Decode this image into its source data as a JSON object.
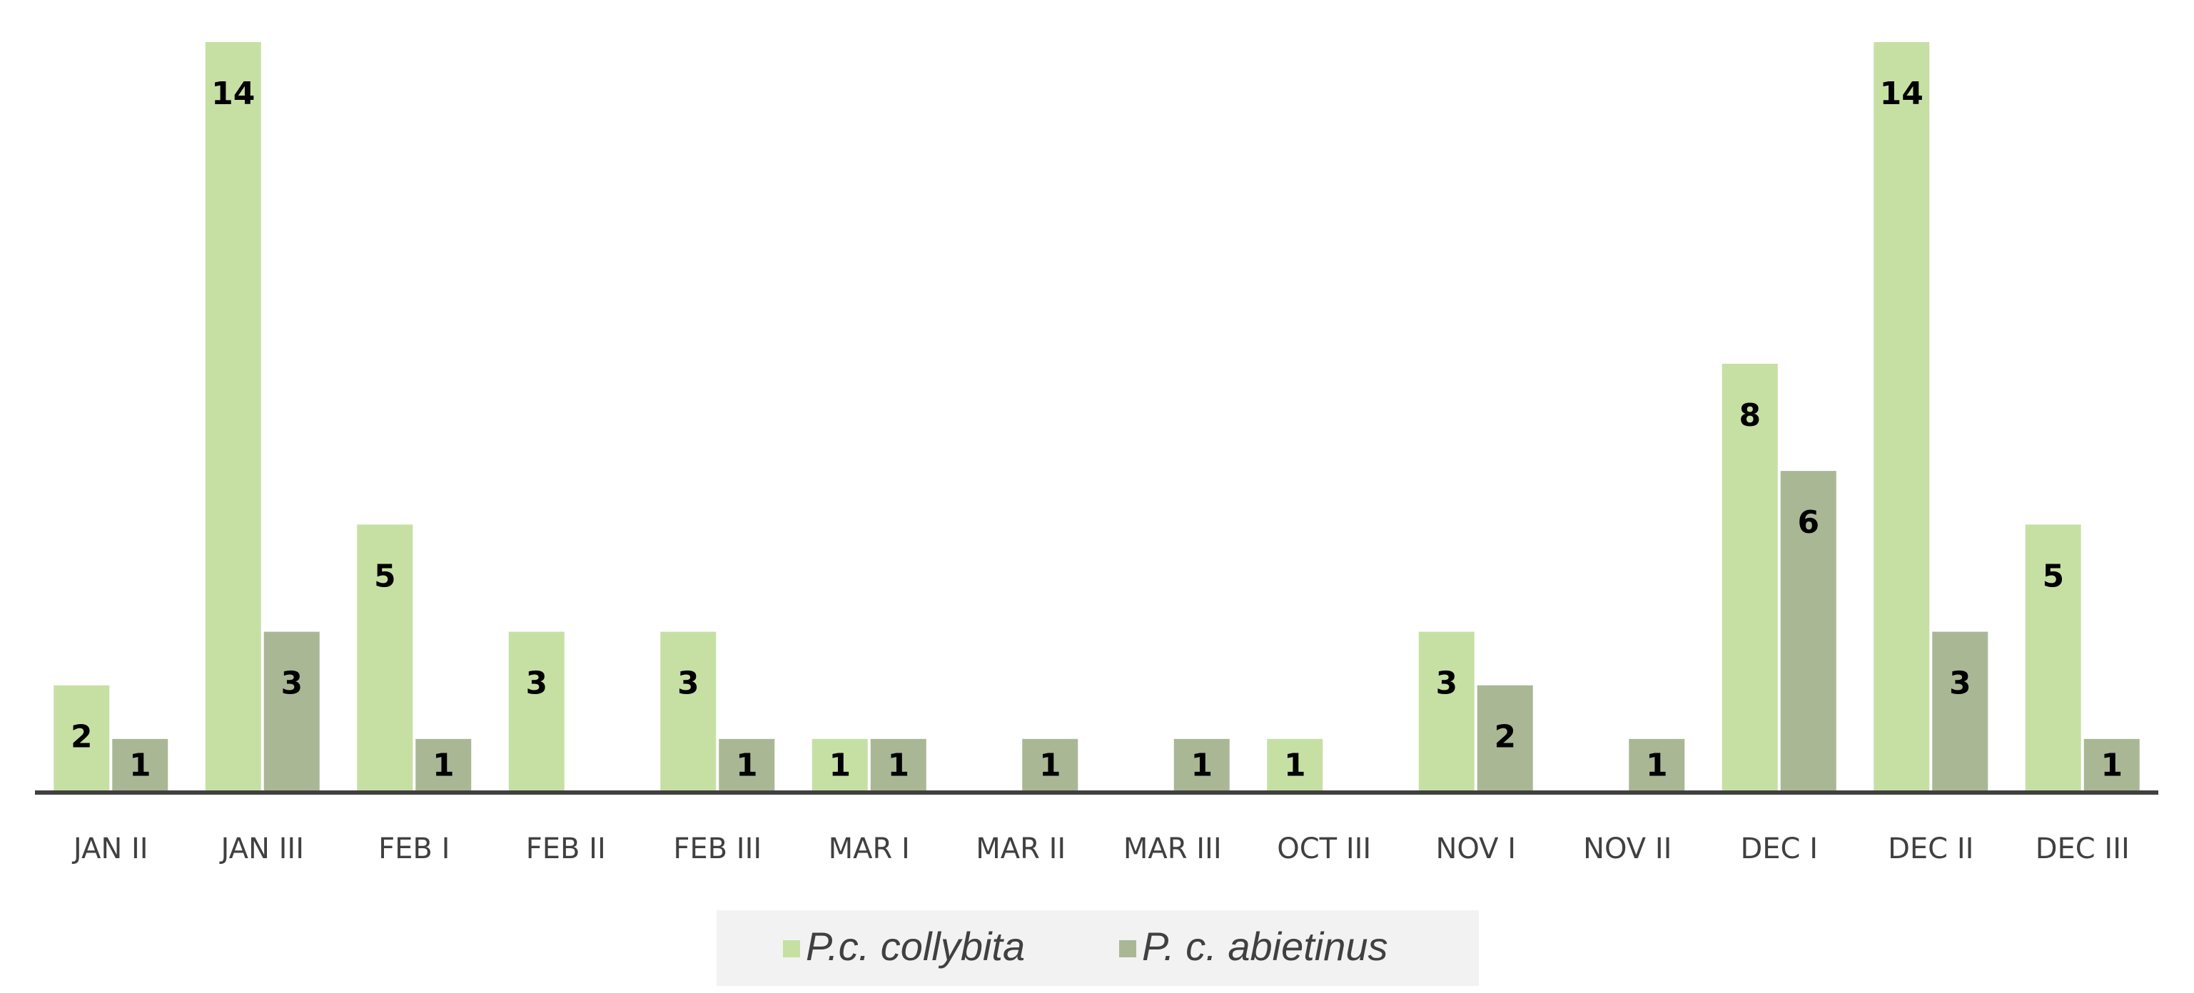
{
  "chart_data": {
    "type": "bar",
    "categories": [
      "JAN II",
      "JAN III",
      "FEB I",
      "FEB II",
      "FEB III",
      "MAR I",
      "MAR II",
      "MAR III",
      "OCT III",
      "NOV I",
      "NOV II",
      "DEC I",
      "DEC II",
      "DEC III"
    ],
    "series": [
      {
        "name": "P.c. collybita",
        "color": "#c6e0a4",
        "values": [
          2,
          14,
          5,
          3,
          3,
          1,
          null,
          null,
          1,
          3,
          null,
          8,
          14,
          5
        ]
      },
      {
        "name": "P. c. abietinus",
        "color": "#aab795",
        "values": [
          1,
          3,
          1,
          null,
          1,
          1,
          1,
          1,
          null,
          2,
          1,
          6,
          3,
          1
        ]
      }
    ],
    "legend": "bottom"
  }
}
